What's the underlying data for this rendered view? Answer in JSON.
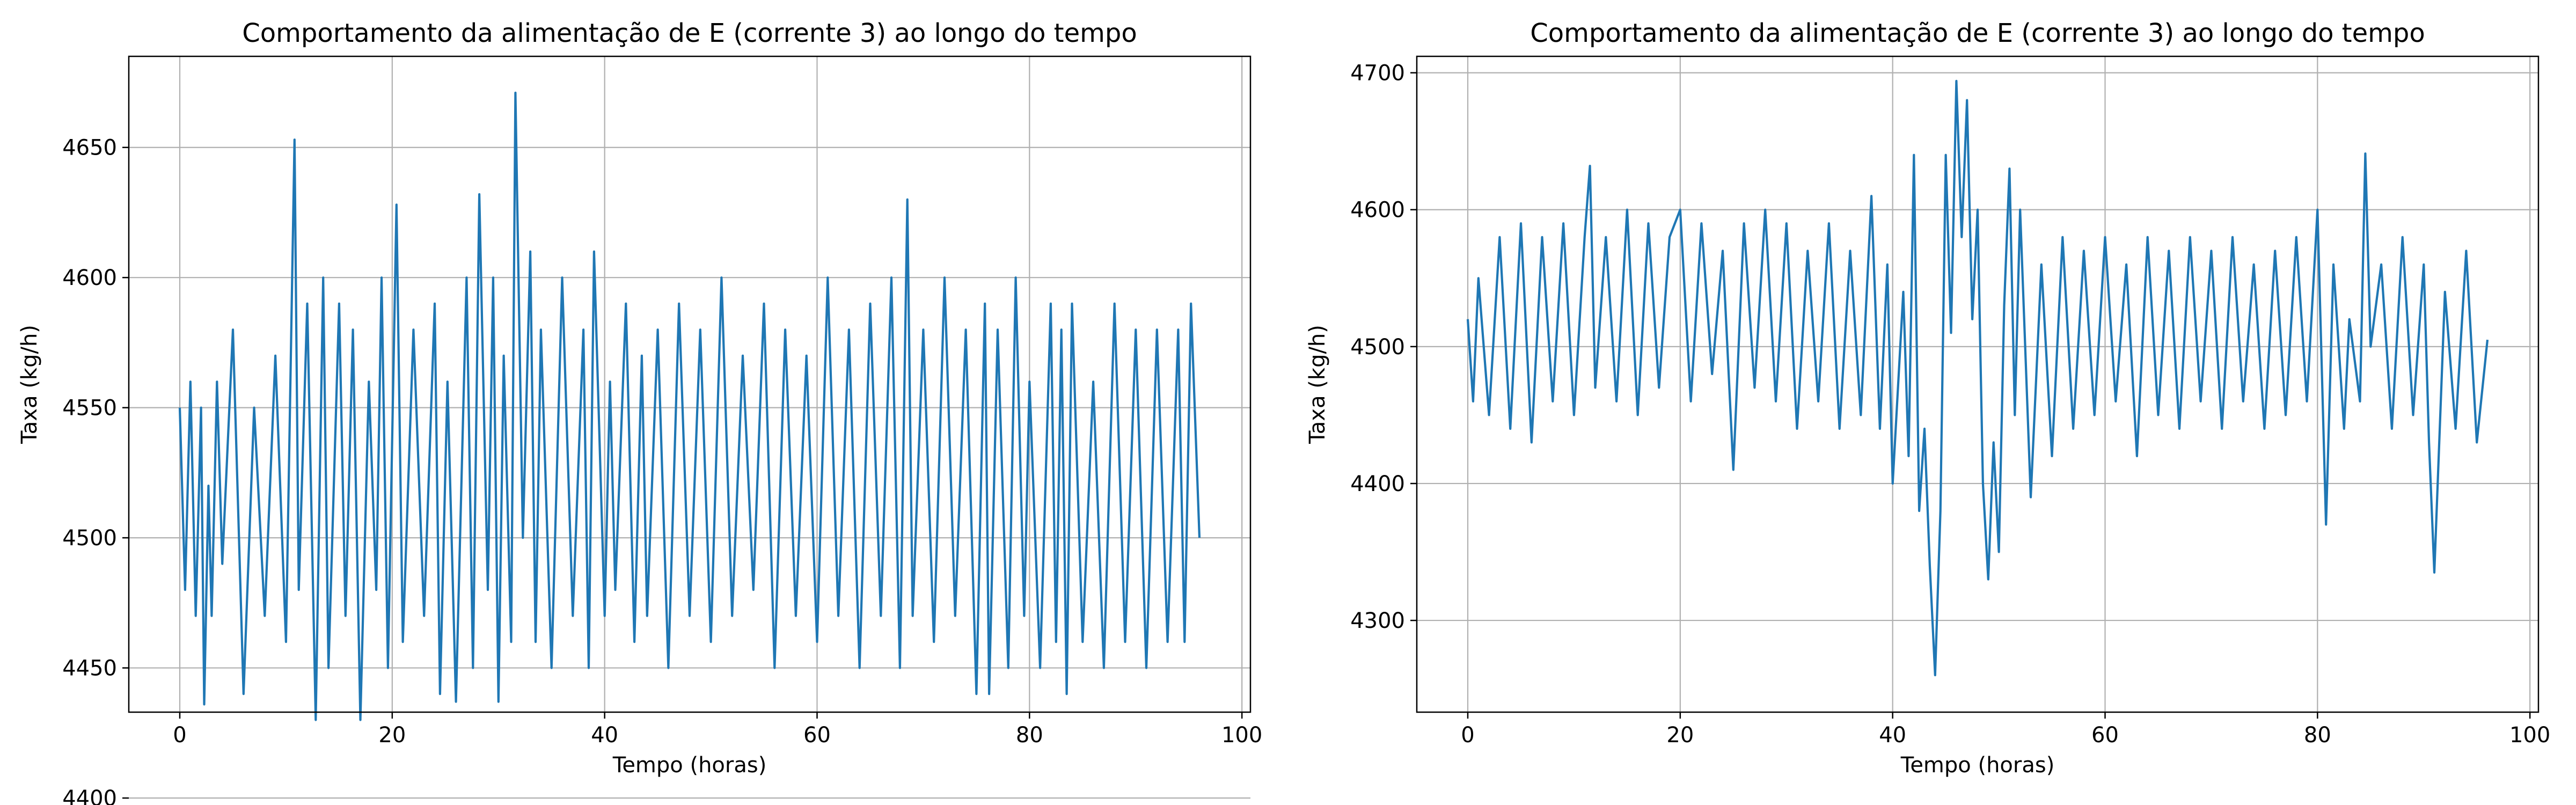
{
  "chart_data": [
    {
      "type": "line",
      "title": "Comportamento da alimentação de E (corrente 3) ao longo do tempo",
      "xlabel": "Tempo (horas)",
      "ylabel": "Taxa (kg/h)",
      "xlim": [
        -4.8,
        100.8
      ],
      "ylim": [
        4433,
        4685
      ],
      "xticks": [
        0,
        20,
        40,
        60,
        80,
        100
      ],
      "yticks": [
        4400,
        4450,
        4500,
        4550,
        4600,
        4650
      ],
      "grid": true,
      "line_color": "#1f77b4",
      "series": [
        {
          "x": [
            0,
            0.5,
            1,
            1.5,
            2,
            2.3,
            2.7,
            3,
            3.5,
            4,
            5,
            6,
            7,
            8,
            9,
            10,
            10.8,
            11.2,
            12,
            12.8,
            13.5,
            14,
            15,
            15.6,
            16.3,
            17,
            17.8,
            18.5,
            19,
            19.6,
            20.4,
            21,
            22,
            23,
            24,
            24.5,
            25.2,
            26,
            27,
            27.6,
            28.2,
            29,
            29.5,
            30,
            30.5,
            31.2,
            31.6,
            32.3,
            33,
            33.5,
            34,
            35,
            36,
            37,
            38,
            38.5,
            39,
            40,
            40.5,
            41,
            42,
            42.8,
            43.5,
            44,
            45,
            46,
            47,
            48,
            49,
            50,
            51,
            52,
            53,
            54,
            55,
            56,
            57,
            58,
            59,
            60,
            61,
            62,
            63,
            64,
            65,
            66,
            67,
            67.8,
            68.5,
            69,
            70,
            71,
            72,
            73,
            74,
            75,
            75.8,
            76.2,
            77,
            78,
            78.7,
            79.5,
            80,
            81,
            82,
            82.5,
            83,
            83.5,
            84,
            85,
            86,
            87,
            88,
            89,
            90,
            91,
            92,
            93,
            94,
            94.6,
            95.2,
            96
          ],
          "y": [
            4550,
            4480,
            4560,
            4470,
            4550,
            4436,
            4520,
            4470,
            4560,
            4490,
            4580,
            4440,
            4550,
            4470,
            4570,
            4460,
            4653,
            4480,
            4590,
            4430,
            4600,
            4450,
            4590,
            4470,
            4580,
            4430,
            4560,
            4480,
            4600,
            4450,
            4628,
            4460,
            4580,
            4470,
            4590,
            4440,
            4560,
            4437,
            4600,
            4450,
            4632,
            4480,
            4600,
            4437,
            4570,
            4460,
            4671,
            4500,
            4610,
            4460,
            4580,
            4450,
            4600,
            4470,
            4580,
            4450,
            4610,
            4470,
            4560,
            4480,
            4590,
            4460,
            4570,
            4470,
            4580,
            4450,
            4590,
            4470,
            4580,
            4460,
            4600,
            4470,
            4570,
            4480,
            4590,
            4450,
            4580,
            4470,
            4570,
            4460,
            4600,
            4470,
            4580,
            4450,
            4590,
            4470,
            4600,
            4450,
            4630,
            4470,
            4580,
            4460,
            4600,
            4470,
            4580,
            4440,
            4590,
            4440,
            4580,
            4450,
            4600,
            4470,
            4560,
            4450,
            4590,
            4460,
            4580,
            4440,
            4590,
            4460,
            4560,
            4450,
            4590,
            4460,
            4580,
            4450,
            4580,
            4460,
            4580,
            4460,
            4590,
            4500
          ]
        }
      ]
    },
    {
      "type": "line",
      "title": "Comportamento da alimentação de E (corrente 3) ao longo do tempo",
      "xlabel": "Tempo (horas)",
      "ylabel": "Taxa (kg/h)",
      "xlim": [
        -4.8,
        100.8
      ],
      "ylim": [
        4233,
        4712
      ],
      "xticks": [
        0,
        20,
        40,
        60,
        80,
        100
      ],
      "yticks": [
        4300,
        4400,
        4500,
        4600,
        4700
      ],
      "grid": true,
      "line_color": "#1f77b4",
      "series": [
        {
          "x": [
            0,
            0.5,
            1,
            2,
            3,
            4,
            5,
            6,
            7,
            8,
            9,
            10,
            11,
            11.5,
            12,
            13,
            14,
            15,
            16,
            17,
            18,
            19,
            20,
            21,
            22,
            23,
            24,
            25,
            26,
            27,
            28,
            29,
            30,
            31,
            32,
            33,
            34,
            35,
            36,
            37,
            38,
            38.8,
            39.5,
            40,
            41,
            41.5,
            42,
            42.5,
            43,
            43.5,
            44,
            44.5,
            45,
            45.5,
            46,
            46.5,
            47,
            47.5,
            48,
            48.5,
            49,
            49.5,
            50,
            50.5,
            51,
            51.5,
            52,
            53,
            54,
            55,
            56,
            57,
            58,
            59,
            60,
            61,
            62,
            63,
            64,
            65,
            66,
            67,
            68,
            69,
            70,
            71,
            72,
            73,
            74,
            75,
            76,
            77,
            78,
            79,
            80,
            80.8,
            81.5,
            82.5,
            83,
            84,
            84.5,
            85,
            86,
            87,
            88,
            89,
            90,
            90.5,
            91,
            92,
            93,
            94,
            95,
            96
          ],
          "y": [
            4520,
            4460,
            4550,
            4450,
            4580,
            4440,
            4590,
            4430,
            4580,
            4460,
            4590,
            4450,
            4580,
            4632,
            4470,
            4580,
            4460,
            4600,
            4450,
            4590,
            4470,
            4580,
            4600,
            4460,
            4590,
            4480,
            4570,
            4410,
            4590,
            4470,
            4600,
            4460,
            4590,
            4440,
            4570,
            4460,
            4590,
            4440,
            4570,
            4450,
            4610,
            4440,
            4560,
            4400,
            4540,
            4420,
            4640,
            4380,
            4440,
            4340,
            4260,
            4380,
            4640,
            4510,
            4694,
            4580,
            4680,
            4520,
            4600,
            4400,
            4330,
            4430,
            4350,
            4530,
            4630,
            4450,
            4600,
            4390,
            4560,
            4420,
            4580,
            4440,
            4570,
            4450,
            4580,
            4460,
            4560,
            4420,
            4580,
            4450,
            4570,
            4440,
            4580,
            4460,
            4570,
            4440,
            4580,
            4460,
            4560,
            4440,
            4570,
            4450,
            4580,
            4460,
            4600,
            4370,
            4560,
            4440,
            4520,
            4460,
            4641,
            4500,
            4560,
            4440,
            4580,
            4450,
            4560,
            4430,
            4335,
            4540,
            4440,
            4570,
            4430,
            4505
          ]
        }
      ]
    }
  ]
}
